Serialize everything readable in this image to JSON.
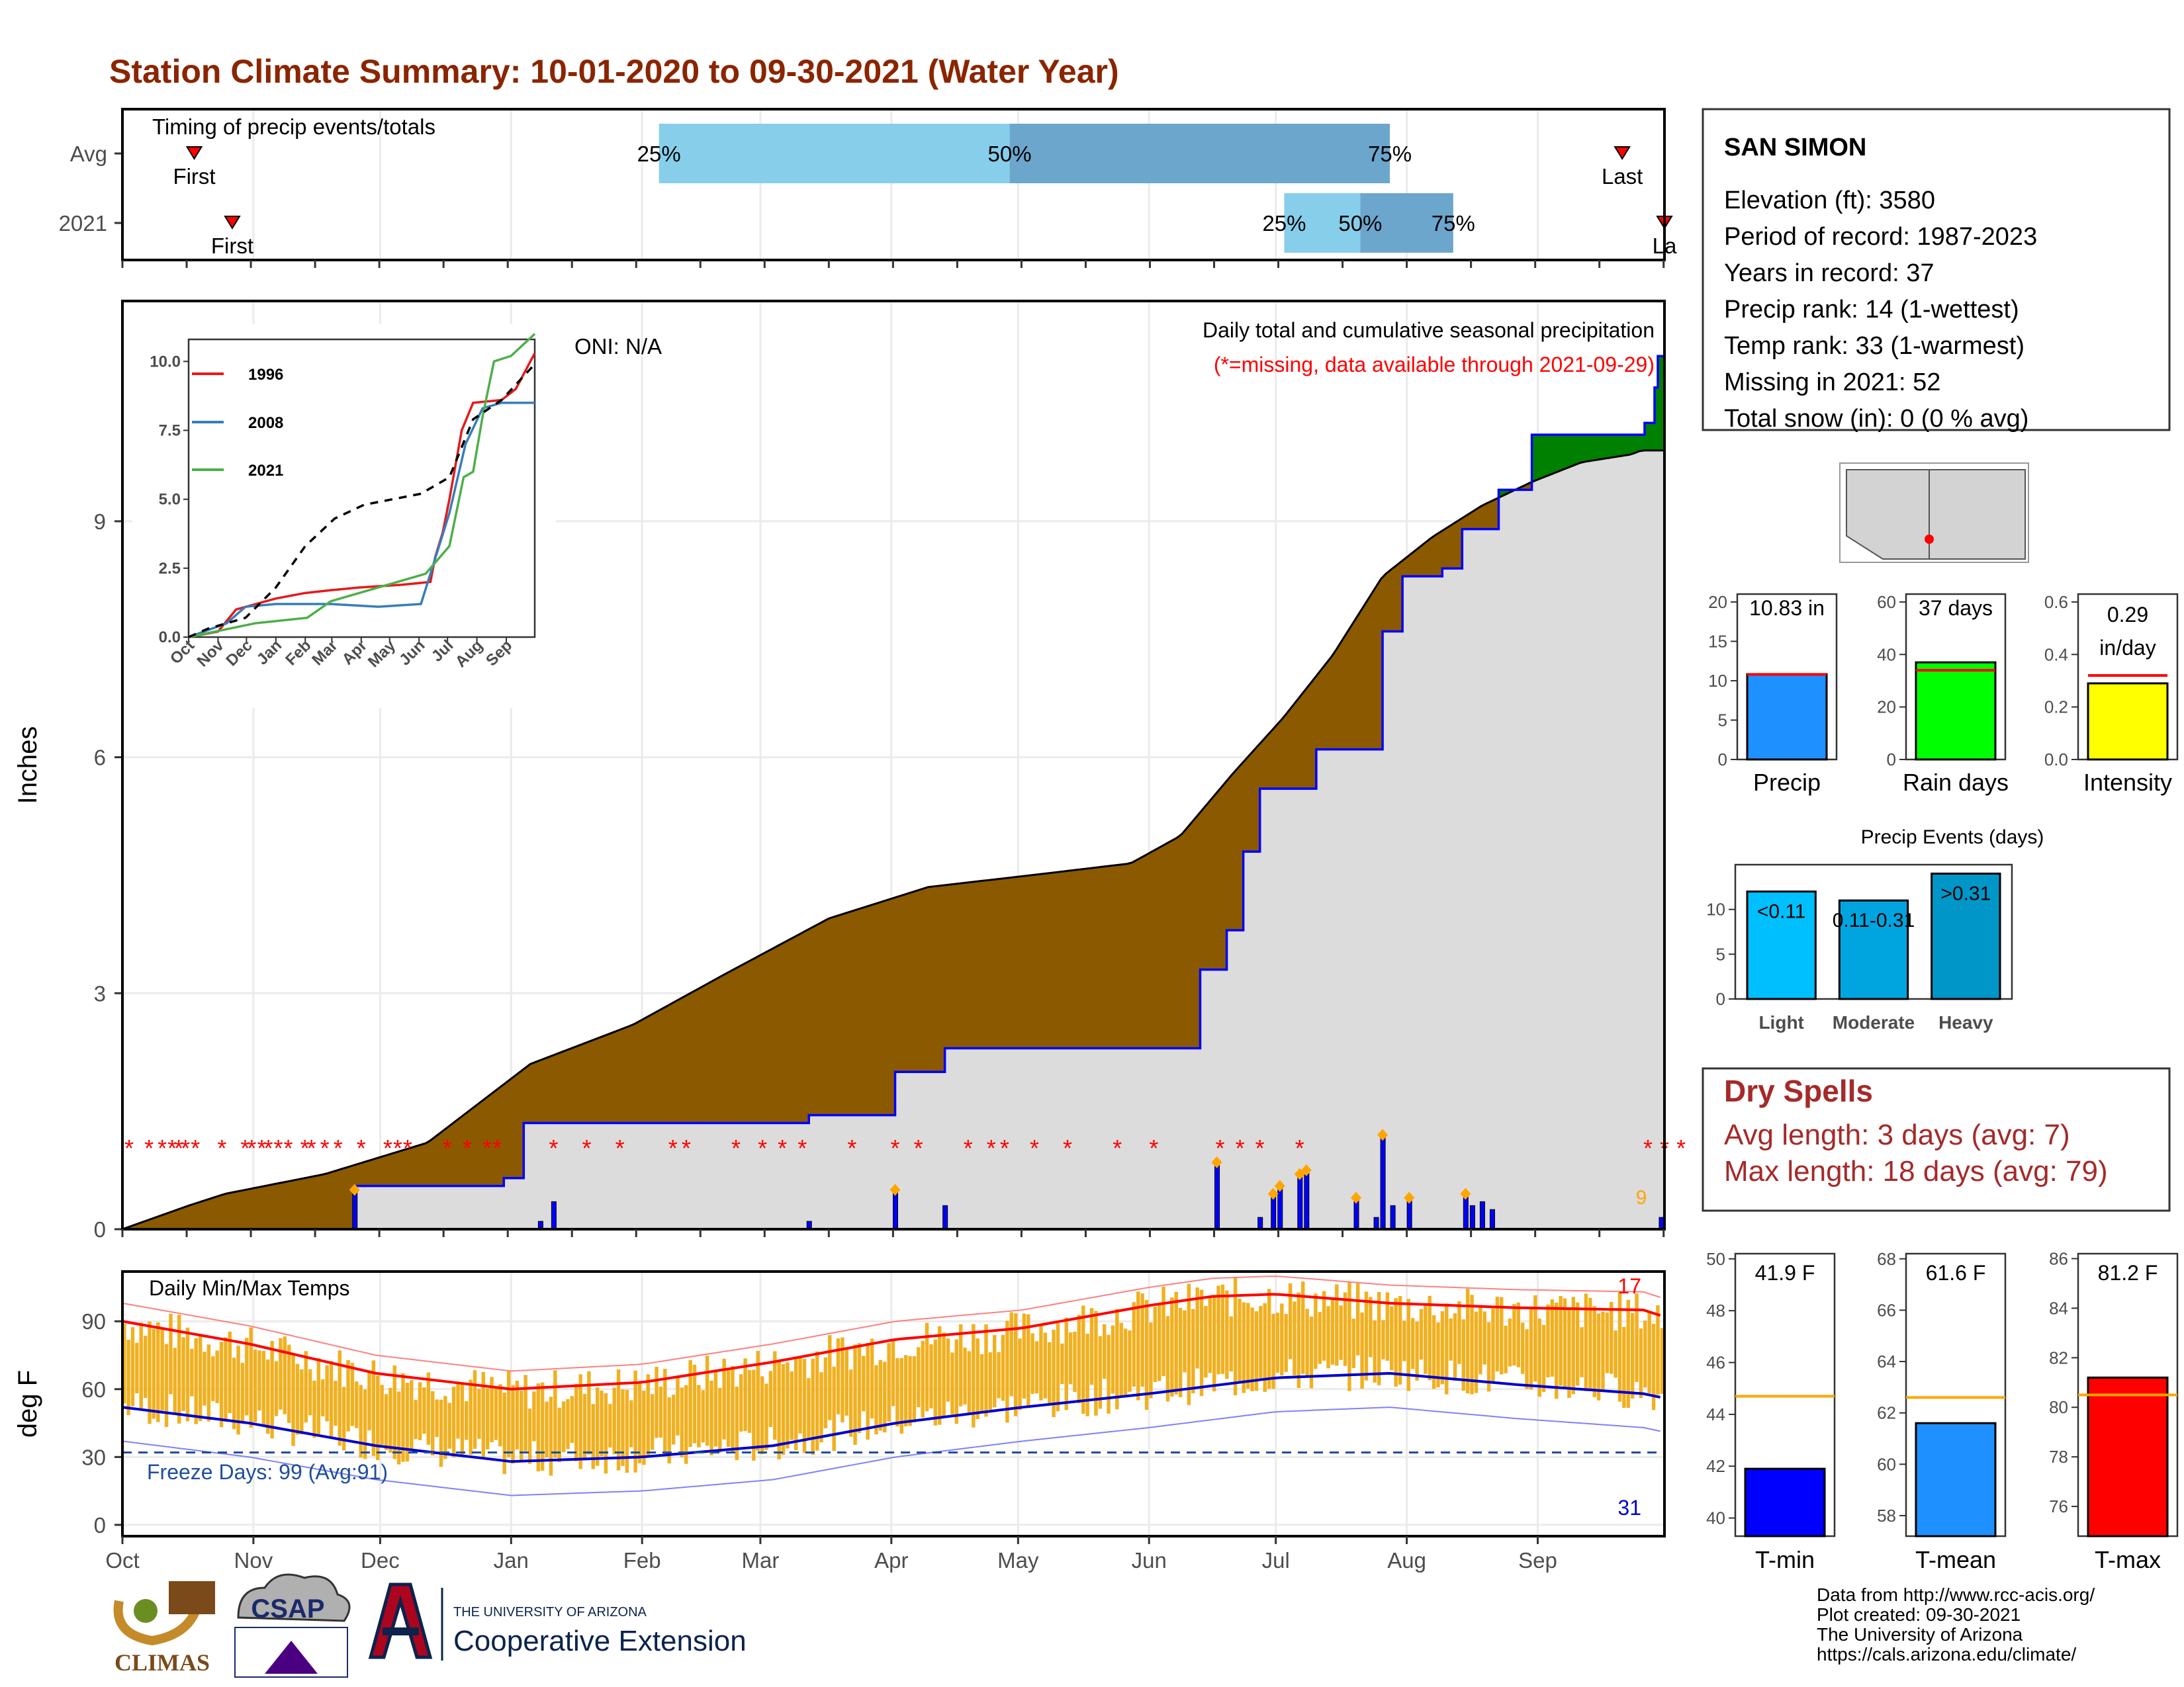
{
  "title": "Station Climate Summary: 10-01-2020 to 09-30-2021 (Water Year)",
  "colors": {
    "title": "#8B2500",
    "brown": "#8B5A00",
    "green": "#008000",
    "blue": "#0000FF",
    "gray_fill": "#DCDCDC",
    "orange": "#F0B020",
    "red": "#FF0000",
    "light_blue": "#87CEEB",
    "mid_blue": "#6CA6CD"
  },
  "months": [
    "Oct",
    "Nov",
    "Dec",
    "Jan",
    "Feb",
    "Mar",
    "Apr",
    "May",
    "Jun",
    "Jul",
    "Aug",
    "Sep"
  ],
  "chart_data": [
    {
      "type": "bar",
      "panel": "timing",
      "title": "Timing of precip events/totals",
      "rows": [
        {
          "name": "Avg",
          "first_label": "First",
          "last_label": "Last",
          "first_day": 17,
          "last_day": 355,
          "q25": 127,
          "q50": 210,
          "q75": 300,
          "q25_label": "25%",
          "q50_label": "50%",
          "q75_label": "75%"
        },
        {
          "name": "2021",
          "first_label": "First",
          "last_label": "La",
          "first_day": 26,
          "last_day": 365,
          "q25": 275,
          "q50": 293,
          "q75": 315,
          "q25_label": "25%",
          "q50_label": "50%",
          "q75_label": "75%"
        }
      ]
    },
    {
      "type": "area",
      "panel": "precip",
      "ylabel": "Inches",
      "yticks": [
        0,
        3,
        6,
        9
      ],
      "ylim": [
        0,
        11.8
      ],
      "oni": "ONI: N/A",
      "note": "Daily total and cumulative seasonal precipitation",
      "missing_note": "(*=missing, data available through 2021-09-29)",
      "missing_marker": "*",
      "last_label": "9",
      "avg_cumulative": [
        [
          0,
          0
        ],
        [
          20,
          0.3
        ],
        [
          31,
          0.45
        ],
        [
          61,
          0.7
        ],
        [
          92,
          1.1
        ],
        [
          123,
          2.1
        ],
        [
          154,
          2.6
        ],
        [
          182,
          3.25
        ],
        [
          213,
          3.95
        ],
        [
          243,
          4.35
        ],
        [
          274,
          4.5
        ],
        [
          304,
          4.65
        ],
        [
          319,
          5.0
        ],
        [
          335,
          5.8
        ],
        [
          350,
          6.5
        ],
        [
          365,
          7.3
        ],
        [
          380,
          8.3
        ],
        [
          395,
          8.8
        ],
        [
          410,
          9.2
        ],
        [
          425,
          9.5
        ],
        [
          440,
          9.75
        ],
        [
          455,
          9.85
        ],
        [
          458,
          9.9
        ]
      ],
      "obs_cumulative": [
        [
          0,
          0
        ],
        [
          70,
          0
        ],
        [
          70,
          0.55
        ],
        [
          115,
          0.55
        ],
        [
          115,
          0.65
        ],
        [
          121,
          0.65
        ],
        [
          121,
          1.35
        ],
        [
          207,
          1.35
        ],
        [
          207,
          1.45
        ],
        [
          233,
          1.45
        ],
        [
          233,
          2.0
        ],
        [
          248,
          2.0
        ],
        [
          248,
          2.3
        ],
        [
          325,
          2.3
        ],
        [
          325,
          3.3
        ],
        [
          333,
          3.3
        ],
        [
          333,
          3.8
        ],
        [
          338,
          3.8
        ],
        [
          338,
          4.8
        ],
        [
          343,
          4.8
        ],
        [
          343,
          5.6
        ],
        [
          360,
          5.6
        ],
        [
          360,
          6.1
        ],
        [
          380,
          6.1
        ],
        [
          380,
          7.6
        ],
        [
          386,
          7.6
        ],
        [
          386,
          8.3
        ],
        [
          398,
          8.3
        ],
        [
          398,
          8.4
        ],
        [
          404,
          8.4
        ],
        [
          404,
          8.9
        ],
        [
          415,
          8.9
        ],
        [
          415,
          9.4
        ],
        [
          425,
          9.4
        ],
        [
          425,
          10.1
        ],
        [
          459,
          10.1
        ],
        [
          459,
          10.25
        ],
        [
          462,
          10.25
        ],
        [
          462,
          10.7
        ],
        [
          463,
          10.7
        ],
        [
          463,
          11.1
        ],
        [
          465,
          11.1
        ]
      ],
      "daily_bars": [
        [
          70,
          0.5
        ],
        [
          126,
          0.1
        ],
        [
          130,
          0.35
        ],
        [
          207,
          0.1
        ],
        [
          233,
          0.5
        ],
        [
          248,
          0.3
        ],
        [
          330,
          0.85
        ],
        [
          343,
          0.15
        ],
        [
          347,
          0.45
        ],
        [
          349,
          0.55
        ],
        [
          355,
          0.7
        ],
        [
          357,
          0.75
        ],
        [
          372,
          0.4
        ],
        [
          378,
          0.15
        ],
        [
          380,
          1.2
        ],
        [
          383,
          0.3
        ],
        [
          388,
          0.4
        ],
        [
          405,
          0.45
        ],
        [
          407,
          0.3
        ],
        [
          410,
          0.35
        ],
        [
          413,
          0.25
        ],
        [
          464,
          0.15
        ],
        [
          466,
          0.3
        ]
      ],
      "missing_days": [
        2,
        8,
        12,
        15,
        17,
        19,
        22,
        30,
        37,
        39,
        42,
        44,
        47,
        50,
        55,
        57,
        61,
        65,
        72,
        80,
        83,
        86,
        98,
        104,
        110,
        113,
        130,
        140,
        150,
        166,
        170,
        185,
        193,
        199,
        205,
        220,
        233,
        240,
        255,
        262,
        266,
        275,
        285,
        300,
        311,
        331,
        337,
        343,
        355,
        460,
        465,
        470
      ]
    },
    {
      "type": "line",
      "panel": "inset",
      "yticks": [
        0.0,
        2.5,
        5.0,
        7.5,
        10.0
      ],
      "ytick_labels": [
        "0.0",
        "2.5",
        "5.0",
        "7.5",
        "10.0"
      ],
      "ylim": [
        0,
        10.8
      ],
      "xtick_labels": [
        "Oct",
        "Nov",
        "Dec",
        "Jan",
        "Feb",
        "Mar",
        "Apr",
        "May",
        "Jun",
        "Jul",
        "Aug",
        "Sep"
      ],
      "series": [
        {
          "name": "1996",
          "color": "#E41A1C",
          "values": [
            [
              0,
              0
            ],
            [
              31,
              0.2
            ],
            [
              50,
              1.0
            ],
            [
              92,
              1.4
            ],
            [
              123,
              1.6
            ],
            [
              150,
              1.7
            ],
            [
              180,
              1.8
            ],
            [
              225,
              1.9
            ],
            [
              255,
              2.0
            ],
            [
              260,
              2.9
            ],
            [
              268,
              3.8
            ],
            [
              275,
              5.0
            ],
            [
              288,
              7.5
            ],
            [
              300,
              8.5
            ],
            [
              330,
              8.6
            ],
            [
              345,
              9.0
            ],
            [
              365,
              10.3
            ]
          ]
        },
        {
          "name": "2008",
          "color": "#377EB8",
          "values": [
            [
              0,
              0
            ],
            [
              40,
              0.5
            ],
            [
              60,
              1.1
            ],
            [
              92,
              1.2
            ],
            [
              150,
              1.2
            ],
            [
              200,
              1.1
            ],
            [
              245,
              1.2
            ],
            [
              275,
              4.5
            ],
            [
              292,
              7.0
            ],
            [
              310,
              8.3
            ],
            [
              330,
              8.5
            ],
            [
              365,
              8.5
            ]
          ]
        },
        {
          "name": "2021",
          "color": "#4DAF4A",
          "values": [
            [
              0,
              0
            ],
            [
              70,
              0.5
            ],
            [
              125,
              0.7
            ],
            [
              150,
              1.3
            ],
            [
              250,
              2.3
            ],
            [
              275,
              3.3
            ],
            [
              290,
              5.8
            ],
            [
              300,
              6.0
            ],
            [
              310,
              8.0
            ],
            [
              322,
              10.0
            ],
            [
              340,
              10.2
            ],
            [
              365,
              11.0
            ]
          ]
        },
        {
          "name": "avg",
          "color": "#000000",
          "dash": true,
          "values": [
            [
              0,
              0
            ],
            [
              20,
              0.3
            ],
            [
              60,
              0.7
            ],
            [
              92,
              1.8
            ],
            [
              123,
              3.3
            ],
            [
              154,
              4.3
            ],
            [
              185,
              4.8
            ],
            [
              215,
              5.0
            ],
            [
              245,
              5.2
            ],
            [
              275,
              5.8
            ],
            [
              300,
              7.9
            ],
            [
              330,
              8.6
            ],
            [
              365,
              9.9
            ]
          ]
        }
      ]
    },
    {
      "type": "bar",
      "panel": "stats",
      "bars": [
        {
          "label": "Precip",
          "value": 10.83,
          "avg": 10.8,
          "value_label": "10.83 in",
          "ylim": [
            0,
            21
          ],
          "yticks": [
            0,
            5,
            10,
            15,
            20
          ],
          "color": "#1E90FF"
        },
        {
          "label": "Rain days",
          "value": 37,
          "avg": 34,
          "value_label": "37 days",
          "ylim": [
            0,
            63
          ],
          "yticks": [
            0,
            20,
            40,
            60
          ],
          "color": "#00FF00"
        },
        {
          "label": "Intensity",
          "value": 0.29,
          "avg": 0.32,
          "value_label": "0.29 in/day",
          "ylim": [
            0,
            0.63
          ],
          "yticks": [
            0.0,
            0.2,
            0.4,
            0.6
          ],
          "ytick_labels": [
            "0.0",
            "0.2",
            "0.4",
            "0.6"
          ],
          "color": "#FFFF00"
        }
      ]
    },
    {
      "type": "bar",
      "panel": "events",
      "title": "Precip Events (days)",
      "categories": [
        "Light",
        "Moderate",
        "Heavy"
      ],
      "bar_labels": [
        "<0.11",
        "0.11-0.31",
        ">0.31"
      ],
      "values": [
        12,
        11,
        14
      ],
      "colors": [
        "#00BFFF",
        "#00A5E0",
        "#0096C8"
      ],
      "ylim": [
        0,
        15
      ],
      "yticks": [
        0,
        5,
        10
      ]
    },
    {
      "type": "area",
      "panel": "temps",
      "title": "Daily Min/Max Temps",
      "ylabel": "deg F",
      "yticks": [
        0,
        30,
        60,
        90
      ],
      "ylim": [
        -5,
        112
      ],
      "freeze_note": "Freeze Days: 99 (Avg:91)",
      "record_high_count": "17",
      "record_low_count": "31",
      "avg_max": [
        [
          0,
          90
        ],
        [
          30,
          80
        ],
        [
          60,
          67
        ],
        [
          92,
          60
        ],
        [
          123,
          63
        ],
        [
          154,
          72
        ],
        [
          183,
          82
        ],
        [
          213,
          87
        ],
        [
          243,
          97
        ],
        [
          258,
          101
        ],
        [
          273,
          102
        ],
        [
          300,
          98
        ],
        [
          330,
          96
        ],
        [
          360,
          95
        ],
        [
          365,
          92
        ]
      ],
      "avg_min": [
        [
          0,
          52
        ],
        [
          30,
          45
        ],
        [
          60,
          35
        ],
        [
          92,
          28
        ],
        [
          123,
          30
        ],
        [
          154,
          35
        ],
        [
          183,
          45
        ],
        [
          213,
          52
        ],
        [
          243,
          58
        ],
        [
          273,
          65
        ],
        [
          300,
          67
        ],
        [
          330,
          62
        ],
        [
          360,
          58
        ],
        [
          365,
          56
        ]
      ],
      "max_range": [
        95,
        58
      ],
      "min_range": [
        42,
        20
      ]
    },
    {
      "type": "bar",
      "panel": "temp_stats",
      "bars": [
        {
          "label": "T-min",
          "value": 41.9,
          "avg": 44.7,
          "value_label": "41.9 F",
          "ylim": [
            39.3,
            50.2
          ],
          "yticks": [
            40,
            42,
            44,
            46,
            48,
            50
          ],
          "color": "#0000FF"
        },
        {
          "label": "T-mean",
          "value": 61.6,
          "avg": 62.6,
          "value_label": "61.6 F",
          "ylim": [
            57.2,
            68.2
          ],
          "yticks": [
            58,
            60,
            62,
            64,
            66,
            68
          ],
          "color": "#1E90FF"
        },
        {
          "label": "T-max",
          "value": 81.2,
          "avg": 80.5,
          "value_label": "81.2 F",
          "ylim": [
            74.8,
            86.2
          ],
          "yticks": [
            76,
            78,
            80,
            82,
            84,
            86
          ],
          "color": "#FF0000"
        }
      ]
    }
  ],
  "info": {
    "station": "SAN SIMON",
    "lines": [
      "Elevation (ft): 3580",
      "Period of record: 1987-2023",
      "Years in record: 37",
      "Precip rank: 14 (1-wettest)",
      "Temp rank: 33 (1-warmest)",
      "Missing in 2021: 52",
      "Total snow (in): 0 (0 % avg)"
    ]
  },
  "dry_spells": {
    "title": "Dry Spells",
    "avg": "Avg length: 3 days (avg: 7)",
    "max": "Max length: 18 days (avg: 79)"
  },
  "footer": {
    "credits": [
      "Data from http://www.rcc-acis.org/",
      "Plot created: 09-30-2021",
      "The University of Arizona",
      "https://cals.arizona.edu/climate/"
    ],
    "climas": "CLIMAS",
    "csap": "CSAP",
    "ua_small": "THE UNIVERSITY OF ARIZONA",
    "ua_big": "Cooperative Extension"
  }
}
